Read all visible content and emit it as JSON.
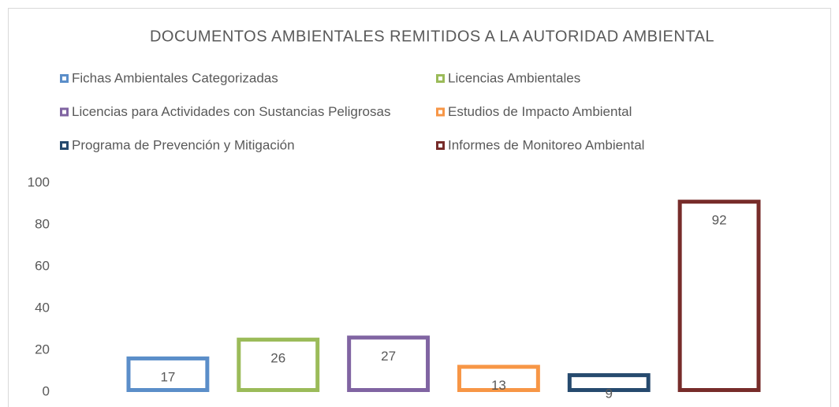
{
  "chart_data": {
    "type": "bar",
    "title": "DOCUMENTOS AMBIENTALES REMITIDOS A LA AUTORIDAD AMBIENTAL",
    "series": [
      {
        "name": "Fichas Ambientales Categorizadas",
        "color": "#5b8ec9",
        "values": [
          17
        ]
      },
      {
        "name": "Licencias Ambientales",
        "color": "#9bbb59",
        "values": [
          26
        ]
      },
      {
        "name": "Licencias para Actividades con Sustancias Peligrosas",
        "color": "#8064a2",
        "values": [
          27
        ]
      },
      {
        "name": "Estudios de Impacto Ambiental",
        "color": "#f79646",
        "values": [
          13
        ]
      },
      {
        "name": "Programa de Prevención y Mitigación",
        "color": "#264a6e",
        "values": [
          9
        ]
      },
      {
        "name": "Informes de Monitoreo Ambiental",
        "color": "#772c2a",
        "values": [
          92
        ]
      }
    ],
    "ylim": [
      0,
      100
    ],
    "yticks": [
      0,
      20,
      40,
      60,
      80,
      100
    ],
    "grid": false
  }
}
